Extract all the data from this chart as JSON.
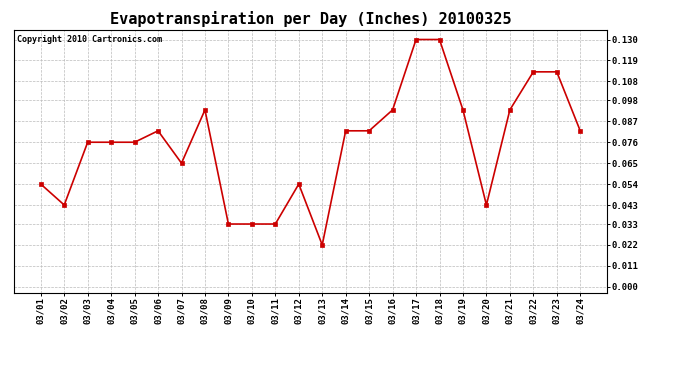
{
  "title": "Evapotranspiration per Day (Inches) 20100325",
  "copyright": "Copyright 2010 Cartronics.com",
  "dates": [
    "03/01",
    "03/02",
    "03/03",
    "03/04",
    "03/05",
    "03/06",
    "03/07",
    "03/08",
    "03/09",
    "03/10",
    "03/11",
    "03/12",
    "03/13",
    "03/14",
    "03/15",
    "03/16",
    "03/17",
    "03/18",
    "03/19",
    "03/20",
    "03/21",
    "03/22",
    "03/23",
    "03/24"
  ],
  "values": [
    0.054,
    0.043,
    0.076,
    0.076,
    0.076,
    0.082,
    0.065,
    0.093,
    0.033,
    0.033,
    0.033,
    0.054,
    0.022,
    0.082,
    0.082,
    0.093,
    0.13,
    0.13,
    0.093,
    0.043,
    0.093,
    0.113,
    0.113,
    0.082
  ],
  "line_color": "#cc0000",
  "marker_color": "#cc0000",
  "background_color": "#ffffff",
  "plot_bg_color": "#ffffff",
  "grid_color": "#bbbbbb",
  "ylim_min": -0.003,
  "ylim_max": 0.135,
  "yticks": [
    0.0,
    0.011,
    0.022,
    0.033,
    0.043,
    0.054,
    0.065,
    0.076,
    0.087,
    0.098,
    0.108,
    0.119,
    0.13
  ],
  "title_fontsize": 11,
  "tick_fontsize": 6.5,
  "copyright_fontsize": 6
}
